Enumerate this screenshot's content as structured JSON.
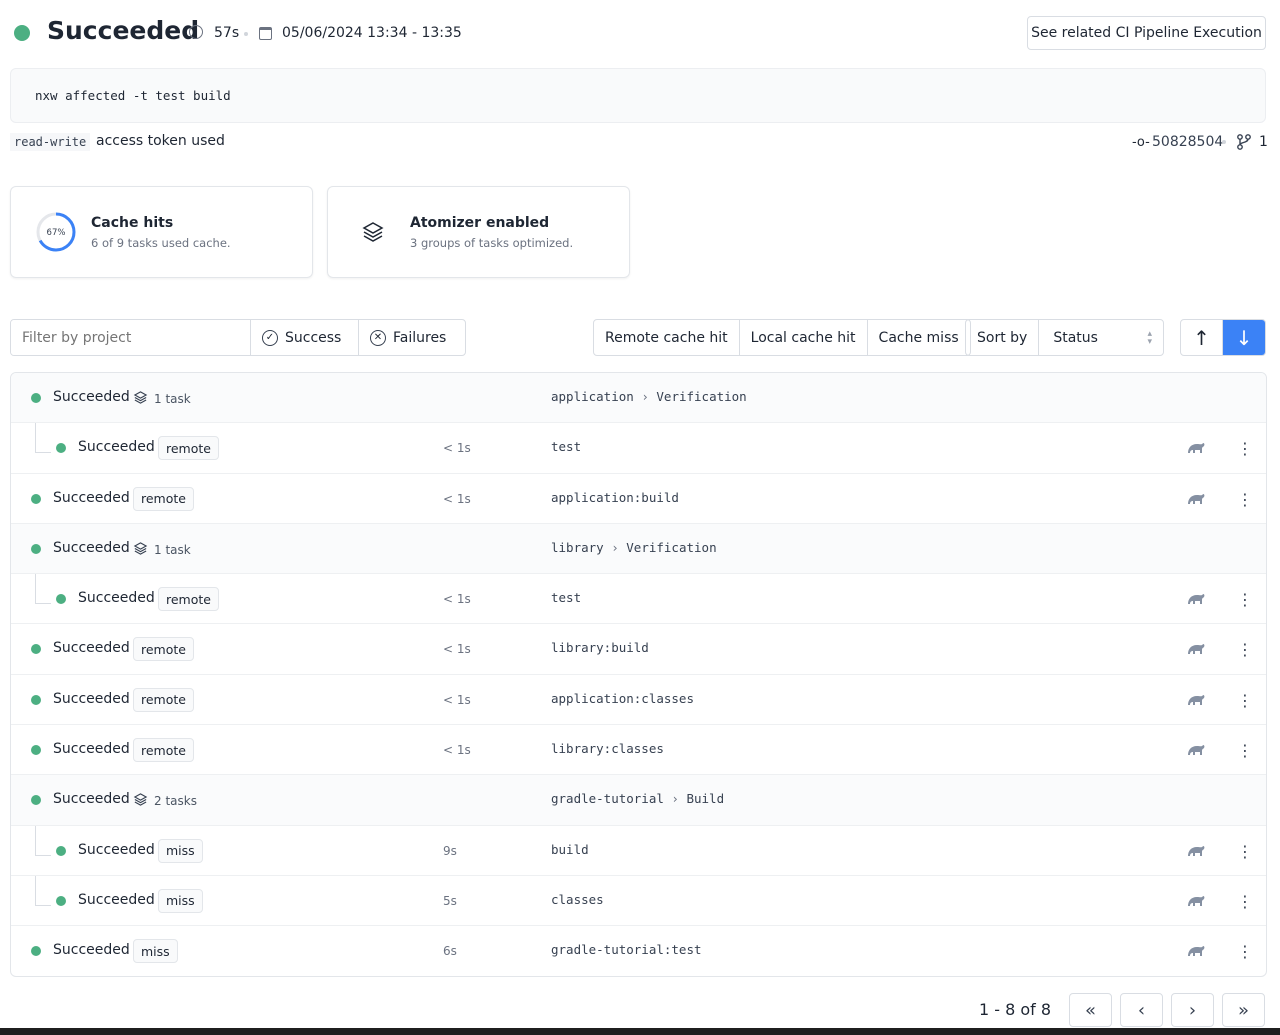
{
  "header": {
    "status": "Succeeded",
    "duration": "57s",
    "date_range": "05/06/2024 13:34 - 13:35",
    "ci_button": "See related CI Pipeline Execution"
  },
  "command": "nxw affected -t test build",
  "token": {
    "type": "read-write",
    "label": "access token used"
  },
  "commit": {
    "sha": "50828504",
    "branches": "1"
  },
  "cards": {
    "cache": {
      "percent_label": "67%",
      "percent": 67,
      "title": "Cache hits",
      "subtitle": "6 of 9 tasks used cache."
    },
    "atomizer": {
      "title": "Atomizer enabled",
      "subtitle": "3 groups of tasks optimized."
    }
  },
  "filters": {
    "placeholder": "Filter by project",
    "success": "Success",
    "failures": "Failures",
    "remote": "Remote cache hit",
    "local": "Local cache hit",
    "miss": "Cache miss",
    "sort_label": "Sort by",
    "sort_value": "Status"
  },
  "rows": [
    {
      "kind": "group",
      "status": "Succeeded",
      "count": "1 task",
      "project": "application",
      "target": "Verification"
    },
    {
      "kind": "child",
      "status": "Succeeded",
      "cache": "remote",
      "duration": "< 1s",
      "name": "test"
    },
    {
      "kind": "task",
      "status": "Succeeded",
      "cache": "remote",
      "duration": "< 1s",
      "name": "application:build"
    },
    {
      "kind": "group",
      "status": "Succeeded",
      "count": "1 task",
      "project": "library",
      "target": "Verification"
    },
    {
      "kind": "child",
      "status": "Succeeded",
      "cache": "remote",
      "duration": "< 1s",
      "name": "test"
    },
    {
      "kind": "task",
      "status": "Succeeded",
      "cache": "remote",
      "duration": "< 1s",
      "name": "library:build"
    },
    {
      "kind": "task",
      "status": "Succeeded",
      "cache": "remote",
      "duration": "< 1s",
      "name": "application:classes"
    },
    {
      "kind": "task",
      "status": "Succeeded",
      "cache": "remote",
      "duration": "< 1s",
      "name": "library:classes"
    },
    {
      "kind": "group",
      "status": "Succeeded",
      "count": "2 tasks",
      "project": "gradle-tutorial",
      "target": "Build"
    },
    {
      "kind": "child",
      "status": "Succeeded",
      "cache": "miss",
      "duration": "9s",
      "name": "build"
    },
    {
      "kind": "child",
      "status": "Succeeded",
      "cache": "miss",
      "duration": "5s",
      "name": "classes"
    },
    {
      "kind": "task",
      "status": "Succeeded",
      "cache": "miss",
      "duration": "6s",
      "name": "gradle-tutorial:test"
    }
  ],
  "pagination": {
    "label": "1 - 8 of 8"
  },
  "colors": {
    "success": "#4caf82",
    "accent": "#3b82f6"
  }
}
